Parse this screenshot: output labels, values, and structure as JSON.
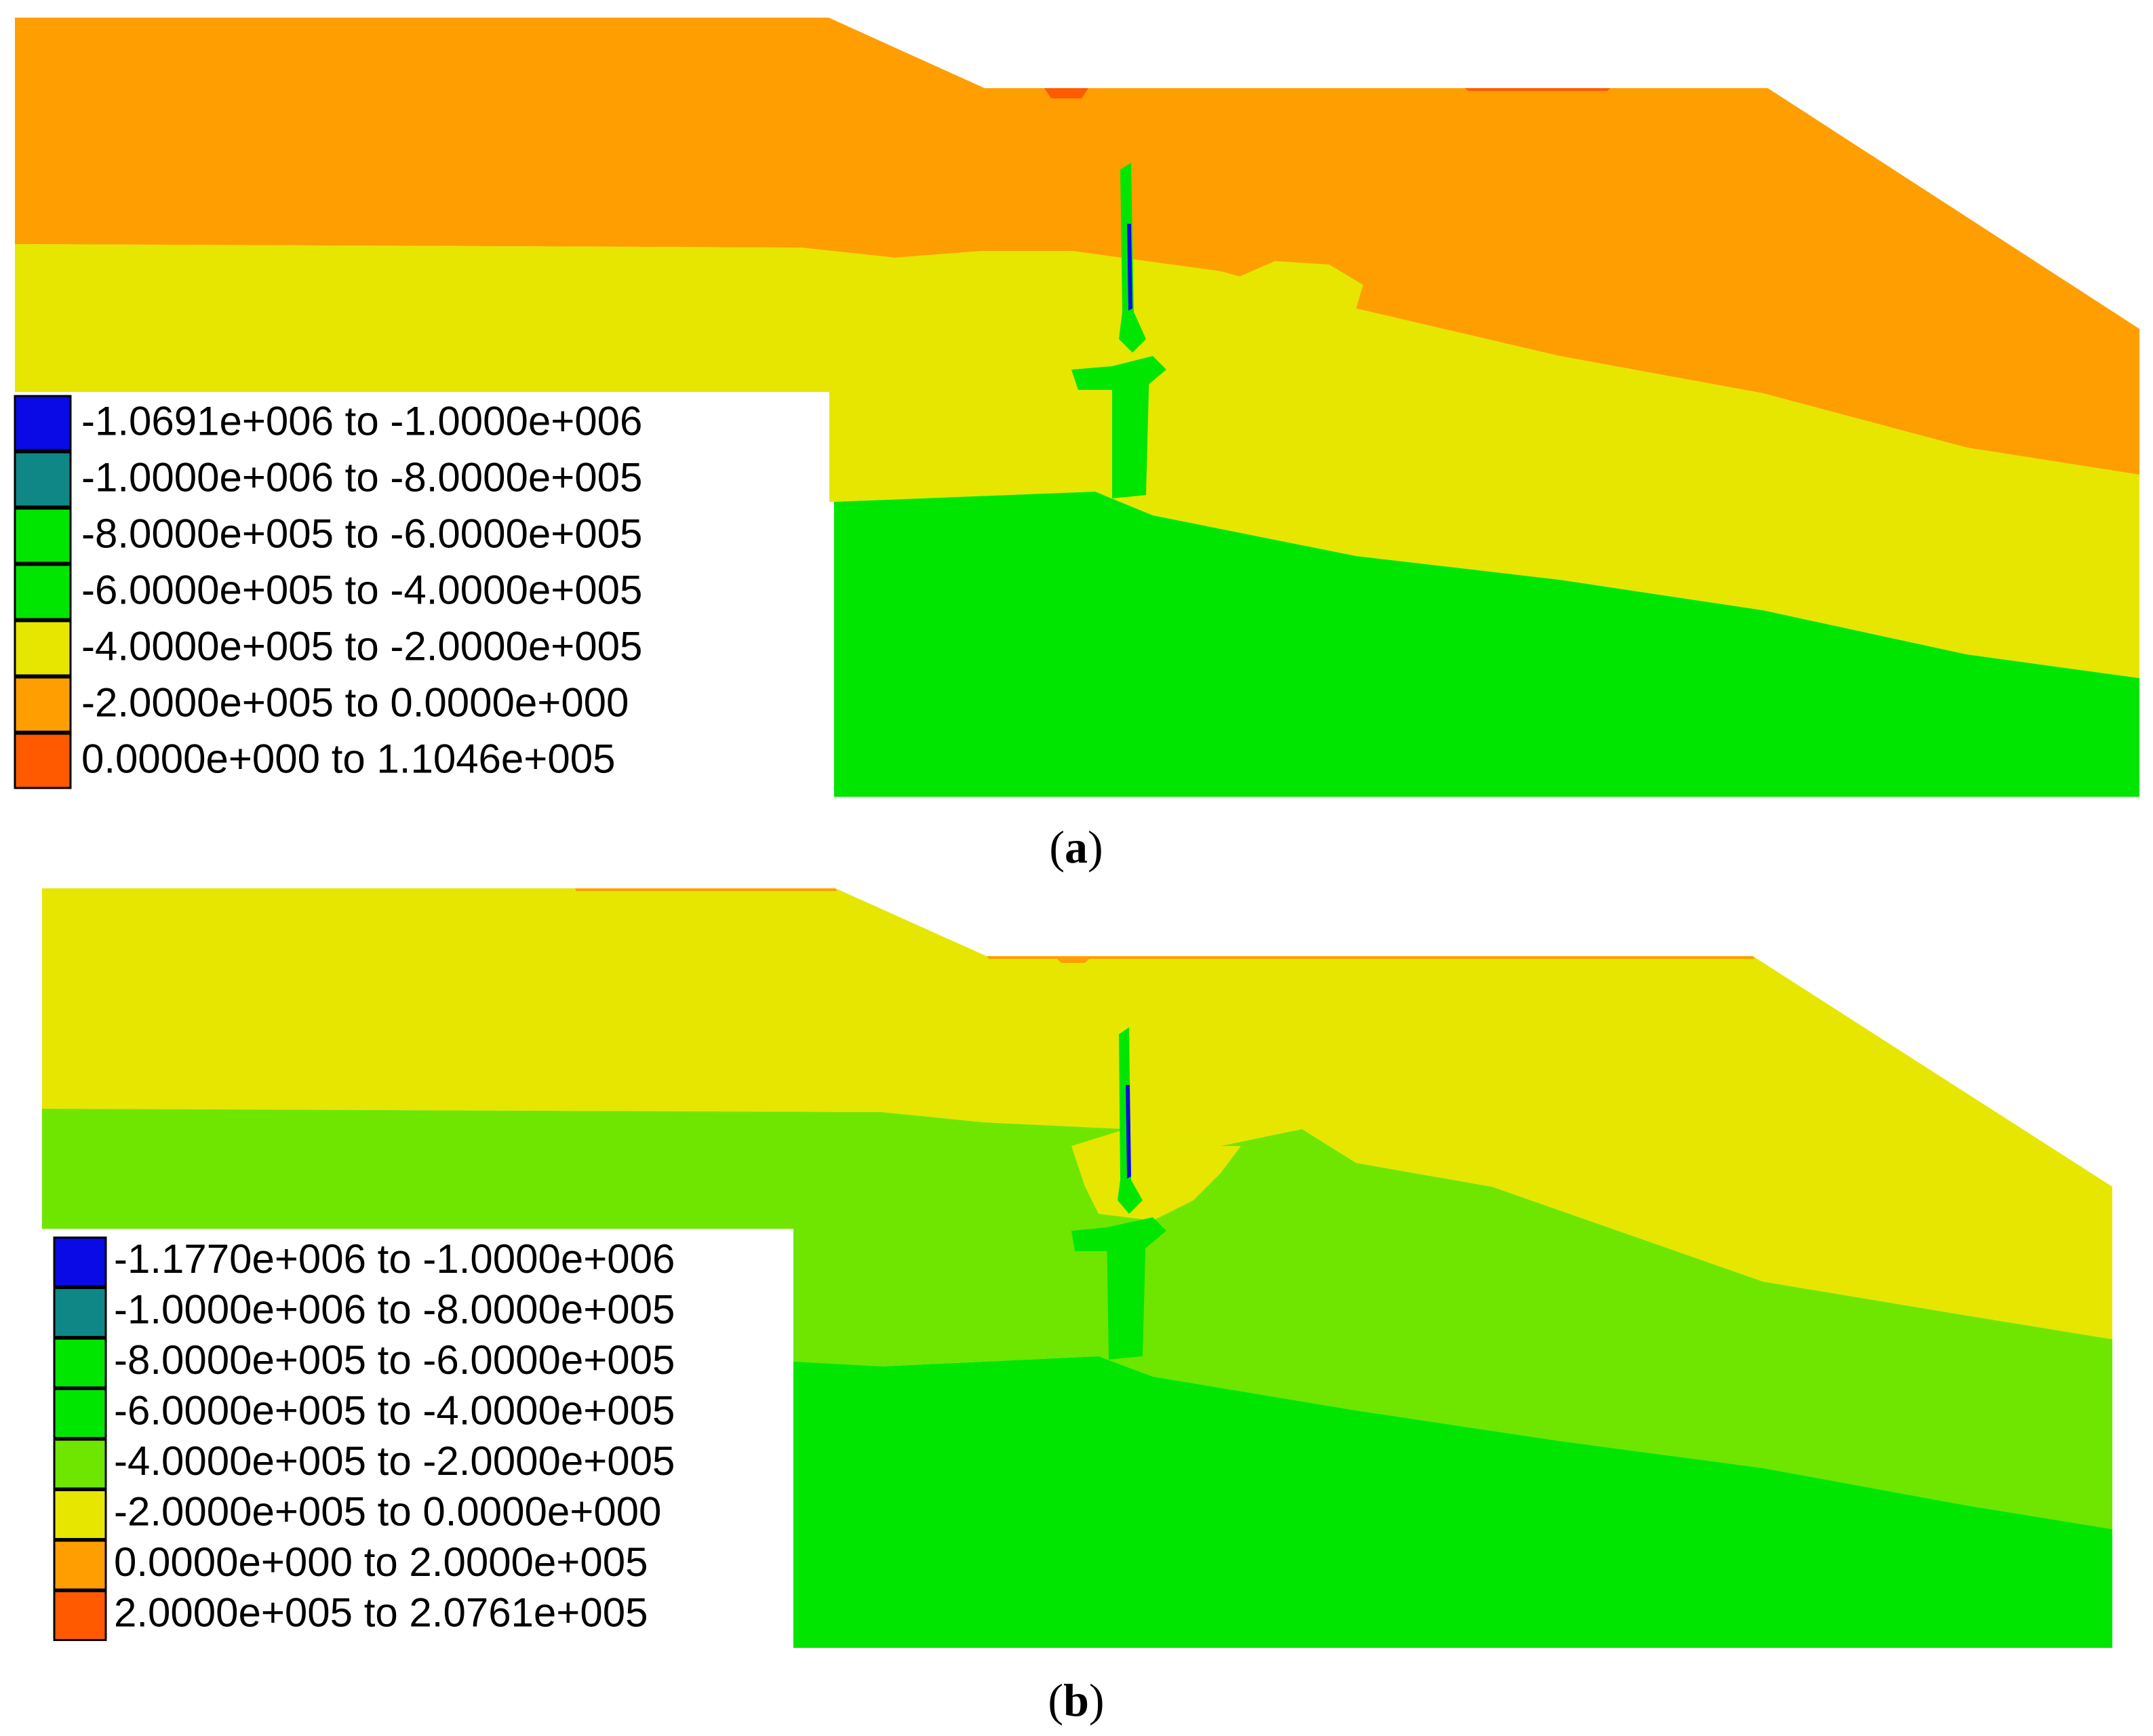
{
  "colors": {
    "blue": "#0a0ae6",
    "teal": "#0f8787",
    "green": "#00e600",
    "yellow_green": "#6ee600",
    "yellow": "#e6e600",
    "orange": "#ff9e00",
    "red_orange": "#ff5a00"
  },
  "panels": [
    {
      "caption_open": "(",
      "caption_letter": "a",
      "caption_close": ")",
      "zone_colors": [
        "#ff9e00",
        "#e6e600",
        "#00e600"
      ],
      "legend": [
        {
          "label": "-1.0691e+006 to -1.0000e+006",
          "color": "#0a0ae6"
        },
        {
          "label": "-1.0000e+006 to -8.0000e+005",
          "color": "#0f8787"
        },
        {
          "label": "-8.0000e+005 to -6.0000e+005",
          "color": "#00e600"
        },
        {
          "label": "-6.0000e+005 to -4.0000e+005",
          "color": "#00e600"
        },
        {
          "label": "-4.0000e+005 to -2.0000e+005",
          "color": "#e6e600"
        },
        {
          "label": "-2.0000e+005 to  0.0000e+000",
          "color": "#ff9e00"
        },
        {
          "label": " 0.0000e+000 to  1.1046e+005",
          "color": "#ff5a00"
        }
      ]
    },
    {
      "caption_open": "(",
      "caption_letter": "b",
      "caption_close": ")",
      "zone_colors": [
        "#e6e600",
        "#6ee600",
        "#00e600"
      ],
      "legend": [
        {
          "label": "-1.1770e+006 to -1.0000e+006",
          "color": "#0a0ae6"
        },
        {
          "label": "-1.0000e+006 to -8.0000e+005",
          "color": "#0f8787"
        },
        {
          "label": "-8.0000e+005 to -6.0000e+005",
          "color": "#00e600"
        },
        {
          "label": "-6.0000e+005 to -4.0000e+005",
          "color": "#00e600"
        },
        {
          "label": "-4.0000e+005 to -2.0000e+005",
          "color": "#6ee600"
        },
        {
          "label": "-2.0000e+005 to  0.0000e+000",
          "color": "#e6e600"
        },
        {
          "label": " 0.0000e+000 to  2.0000e+005",
          "color": "#ff9e00"
        },
        {
          "label": " 2.0000e+005 to  2.0761e+005",
          "color": "#ff5a00"
        }
      ]
    }
  ]
}
